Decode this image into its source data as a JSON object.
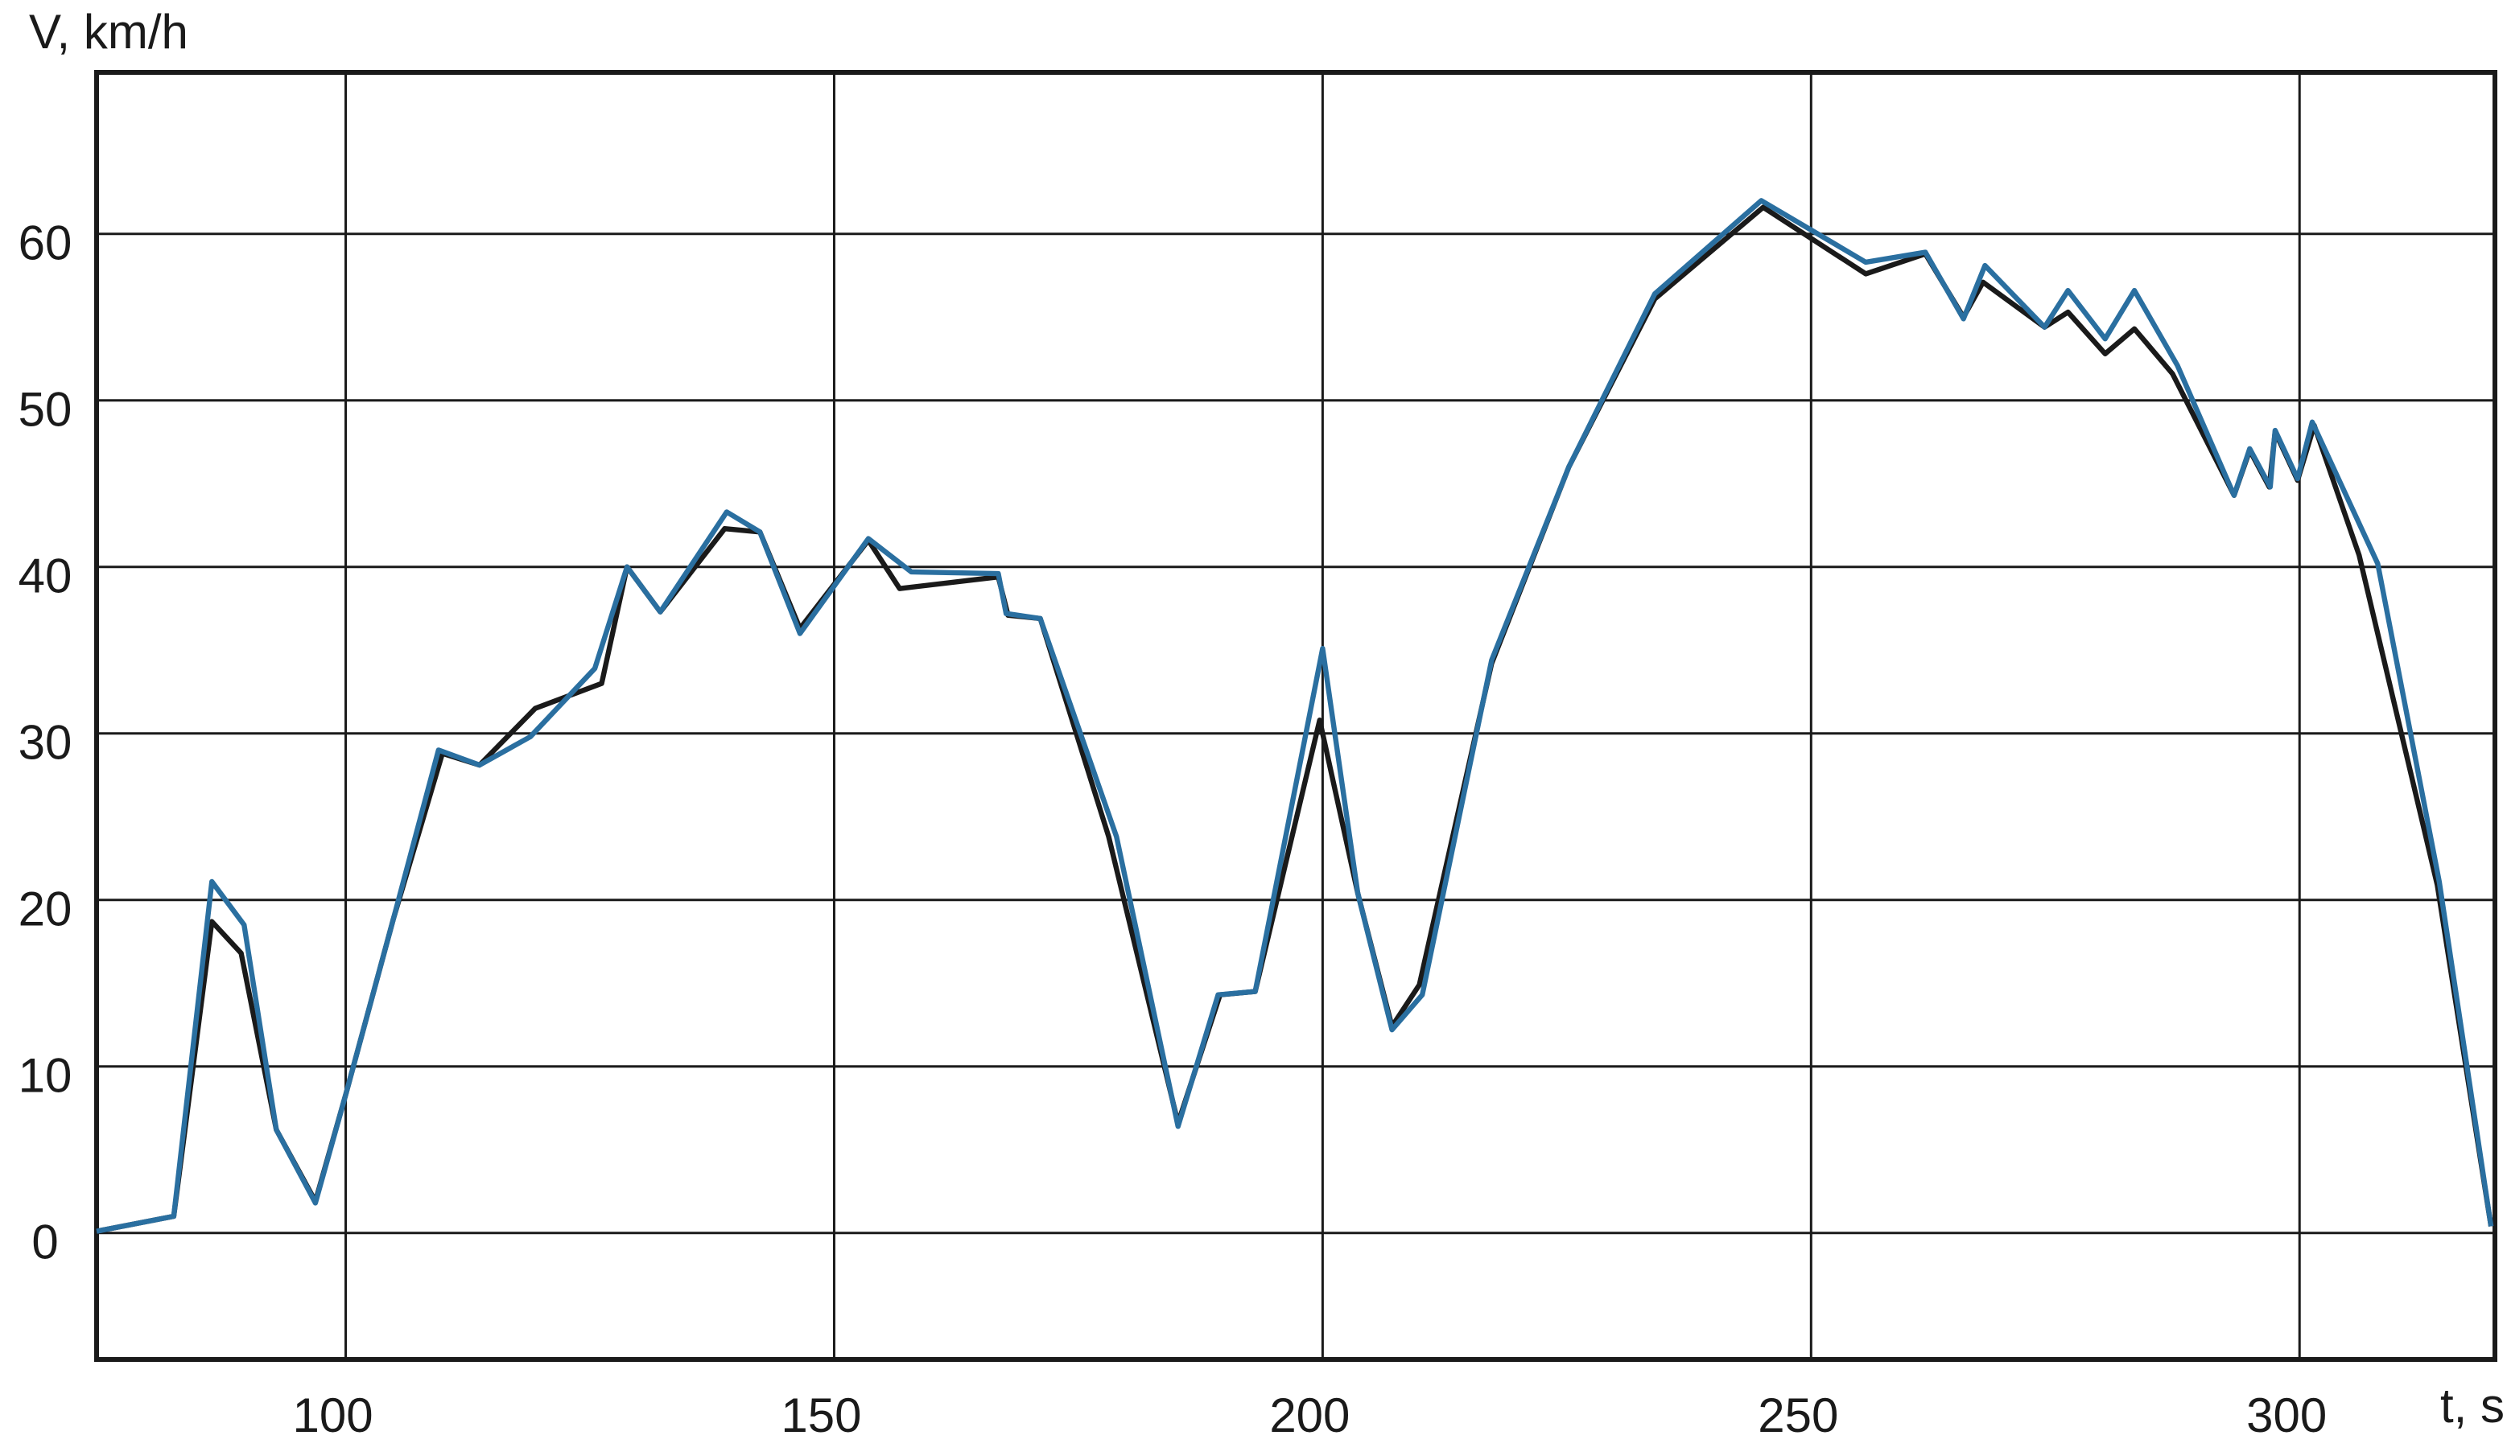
{
  "chart_data": {
    "type": "line",
    "y_label": "V, km/h",
    "x_label": "t, s",
    "xlim": [
      74.5,
      320
    ],
    "ylim": [
      -7.6,
      69.7
    ],
    "xticks": [
      100,
      150,
      200,
      250,
      300
    ],
    "yticks": [
      0,
      10,
      20,
      30,
      40,
      50,
      60
    ],
    "grid": true,
    "series": [
      {
        "color": "#1a1a1a",
        "x": [
          74.5,
          82.4,
          86.3,
          89.3,
          92.9,
          96.9,
          100,
          104.9,
          109.9,
          113.7,
          119.4,
          126.2,
          128.8,
          132.2,
          138.8,
          142.4,
          146.5,
          153.5,
          156.7,
          166.8,
          167.8,
          171.1,
          178.1,
          185.2,
          189.5,
          193.1,
          199.7,
          203.6,
          207.1,
          209.9,
          217.3,
          225.2,
          234.0,
          245.1,
          255.6,
          261.7,
          265.6,
          267.6,
          273.9,
          276.3,
          280.1,
          283.1,
          287.0,
          293.3,
          294.9,
          296.9,
          297.5,
          299.8,
          301.5,
          306.1,
          314.1,
          319.6
        ],
        "values": [
          0.1,
          1.0,
          18.7,
          16.8,
          6.2,
          1.9,
          8.3,
          18.9,
          28.8,
          28.1,
          31.5,
          33.0,
          40.0,
          37.3,
          42.3,
          42.1,
          36.3,
          41.6,
          38.7,
          39.4,
          37.1,
          36.9,
          23.8,
          6.6,
          14.3,
          14.5,
          30.8,
          20.4,
          12.4,
          14.9,
          34.2,
          46.0,
          56.1,
          61.6,
          57.6,
          58.8,
          55.0,
          57.1,
          54.4,
          55.3,
          52.8,
          54.3,
          51.6,
          44.3,
          47.0,
          44.8,
          48.1,
          45.2,
          48.5,
          40.7,
          20.9,
          0.4
        ]
      },
      {
        "color": "#2a6fa0",
        "x": [
          74.5,
          82.4,
          86.3,
          89.6,
          92.9,
          96.9,
          100,
          104.9,
          109.5,
          113.7,
          118.9,
          125.5,
          128.8,
          132.2,
          139.0,
          142.4,
          146.5,
          153.5,
          157.9,
          166.8,
          167.6,
          171.1,
          178.9,
          185.2,
          189.3,
          193.1,
          200.0,
          203.6,
          207.1,
          210.2,
          217.3,
          225.2,
          234.0,
          244.9,
          255.6,
          261.7,
          265.6,
          267.8,
          273.9,
          276.3,
          280.1,
          283.1,
          287.5,
          293.3,
          294.9,
          297.0,
          297.5,
          299.8,
          301.3,
          308.0,
          314.3,
          319.6
        ],
        "values": [
          0.1,
          1.0,
          21.1,
          18.5,
          6.2,
          1.8,
          8.3,
          18.9,
          29.0,
          28.1,
          29.8,
          33.9,
          40.0,
          37.3,
          43.3,
          42.1,
          36.0,
          41.7,
          39.7,
          39.6,
          37.2,
          36.9,
          23.8,
          6.4,
          14.3,
          14.5,
          35.1,
          20.4,
          12.2,
          14.3,
          34.4,
          46.0,
          56.4,
          62.0,
          58.3,
          58.9,
          54.9,
          58.1,
          54.4,
          56.6,
          53.7,
          56.6,
          52.1,
          44.3,
          47.1,
          44.8,
          48.2,
          45.3,
          48.7,
          40.2,
          21.1,
          0.4
        ]
      }
    ]
  }
}
